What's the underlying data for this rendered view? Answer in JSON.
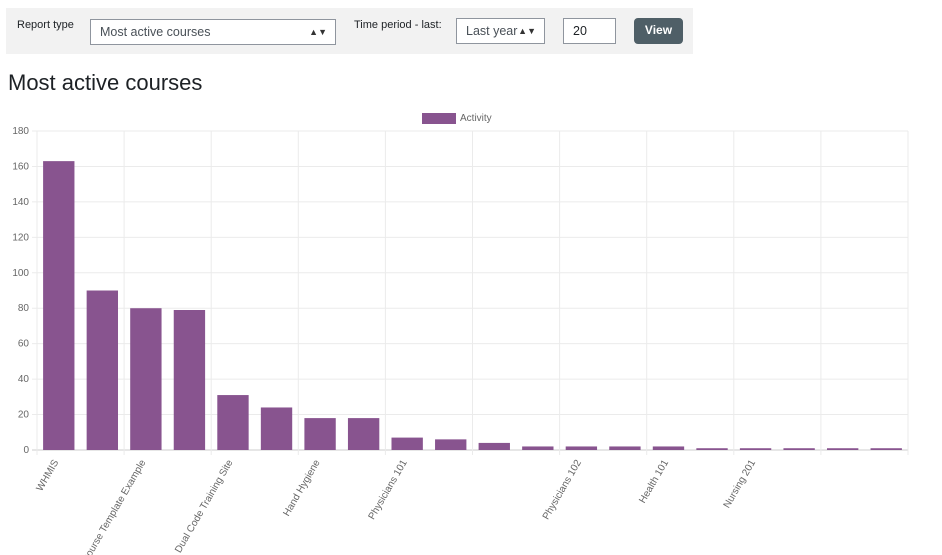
{
  "form": {
    "report_type_label": "Report type",
    "report_type_value": "Most active courses",
    "time_period_label": "Time period - last:",
    "time_period_value": "Last year",
    "count_value": "20",
    "view_label": "View"
  },
  "page_title": "Most active courses",
  "chart_data": {
    "type": "bar",
    "legend": {
      "label": "Activity",
      "placement": "top"
    },
    "color": "#88548f",
    "categories": [
      "WHMIS",
      "",
      "Course Template Example",
      "",
      "Dual Code Training Site",
      "",
      "Hand Hygiene",
      "",
      "Physicians 101",
      "",
      "",
      "",
      "Physicians 102",
      "",
      "Health 101",
      "",
      "Nursing 201",
      "",
      "",
      ""
    ],
    "series": [
      {
        "name": "Activity",
        "values": [
          163,
          90,
          80,
          79,
          31,
          24,
          18,
          18,
          7,
          6,
          4,
          2,
          2,
          2,
          2,
          1,
          1,
          1,
          1,
          1
        ]
      }
    ],
    "ylim": [
      0,
      180
    ],
    "yticks": [
      0,
      20,
      40,
      60,
      80,
      100,
      120,
      140,
      160,
      180
    ],
    "grid": true
  }
}
